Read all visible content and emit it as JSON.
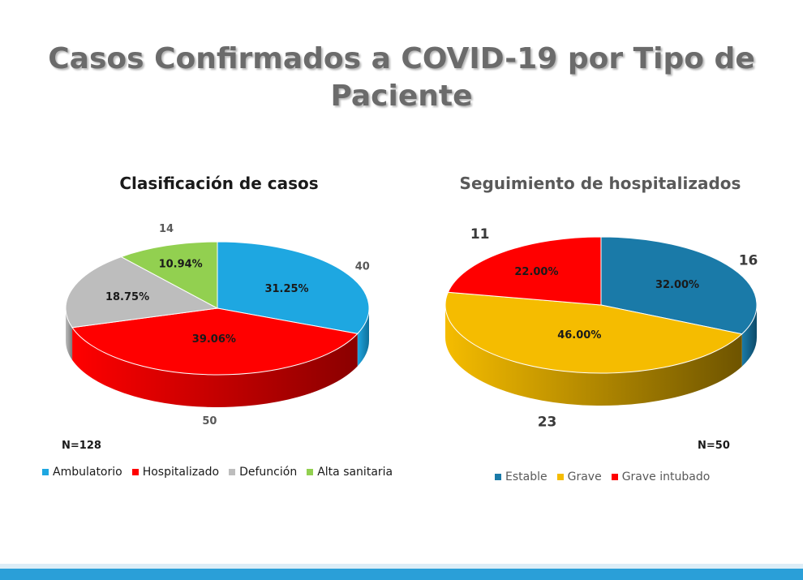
{
  "title": "Casos Confirmados a COVID-19 por Tipo de Paciente",
  "chart_data": [
    {
      "type": "pie",
      "title": "Clasificación de casos",
      "categories": [
        "Ambulatorio",
        "Hospitalizado",
        "Defunción",
        "Alta sanitaria"
      ],
      "values": [
        40,
        50,
        24,
        14
      ],
      "percent_labels": [
        "31.25%",
        "39.06%",
        "18.75%",
        "10.94%"
      ],
      "colors": [
        "#1ea7e1",
        "#ff0000",
        "#bdbdbd",
        "#92d050"
      ],
      "side_colors": [
        "#0f6f9a",
        "#8a0000",
        "#7a7a7a",
        "#5a8a2a"
      ],
      "n_label": "N=128",
      "legend_position": "bottom",
      "three_d": true
    },
    {
      "type": "pie",
      "title": "Seguimiento de hospitalizados",
      "categories": [
        "Estable",
        "Grave",
        "Grave intubado"
      ],
      "values": [
        16,
        23,
        11
      ],
      "percent_labels": [
        "32.00%",
        "46.00%",
        "22.00%"
      ],
      "colors": [
        "#1a7aa8",
        "#f5bc00",
        "#ff0000"
      ],
      "side_colors": [
        "#0d4a68",
        "#6e5400",
        "#8a0000"
      ],
      "n_label": "N=50",
      "legend_position": "bottom",
      "three_d": true
    }
  ]
}
